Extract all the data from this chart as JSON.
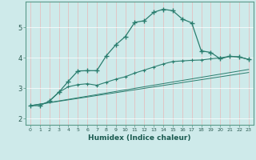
{
  "xlabel": "Humidex (Indice chaleur)",
  "background_color": "#ceeaea",
  "grid_color": "#ffffff",
  "line_color": "#2a7d6e",
  "xlim": [
    -0.5,
    23.5
  ],
  "ylim": [
    1.8,
    5.85
  ],
  "yticks": [
    2,
    3,
    4,
    5
  ],
  "xticks": [
    0,
    1,
    2,
    3,
    4,
    5,
    6,
    7,
    8,
    9,
    10,
    11,
    12,
    13,
    14,
    15,
    16,
    17,
    18,
    19,
    20,
    21,
    22,
    23
  ],
  "curve1_x": [
    0,
    1,
    2,
    3,
    4,
    5,
    6,
    7,
    8,
    9,
    10,
    11,
    12,
    13,
    14,
    15,
    16,
    17,
    18,
    19,
    20,
    21,
    22,
    23
  ],
  "curve1_y": [
    2.43,
    2.43,
    2.58,
    2.87,
    3.23,
    3.57,
    3.58,
    3.58,
    4.07,
    4.43,
    4.7,
    5.17,
    5.22,
    5.5,
    5.6,
    5.55,
    5.28,
    5.15,
    4.23,
    4.18,
    3.97,
    4.05,
    4.03,
    3.95
  ],
  "curve2_x": [
    2,
    3,
    4,
    5,
    6,
    7,
    8,
    9,
    10,
    11,
    12,
    13,
    14,
    15,
    16,
    17,
    18,
    19,
    20,
    21,
    22,
    23
  ],
  "curve2_y": [
    2.58,
    2.87,
    3.05,
    3.12,
    3.15,
    3.1,
    3.2,
    3.3,
    3.38,
    3.5,
    3.6,
    3.7,
    3.8,
    3.88,
    3.9,
    3.92,
    3.93,
    3.97,
    4.0,
    4.05,
    4.03,
    3.95
  ],
  "line1_x": [
    0,
    23
  ],
  "line1_y": [
    2.43,
    3.62
  ],
  "line2_x": [
    0,
    23
  ],
  "line2_y": [
    2.43,
    3.52
  ]
}
